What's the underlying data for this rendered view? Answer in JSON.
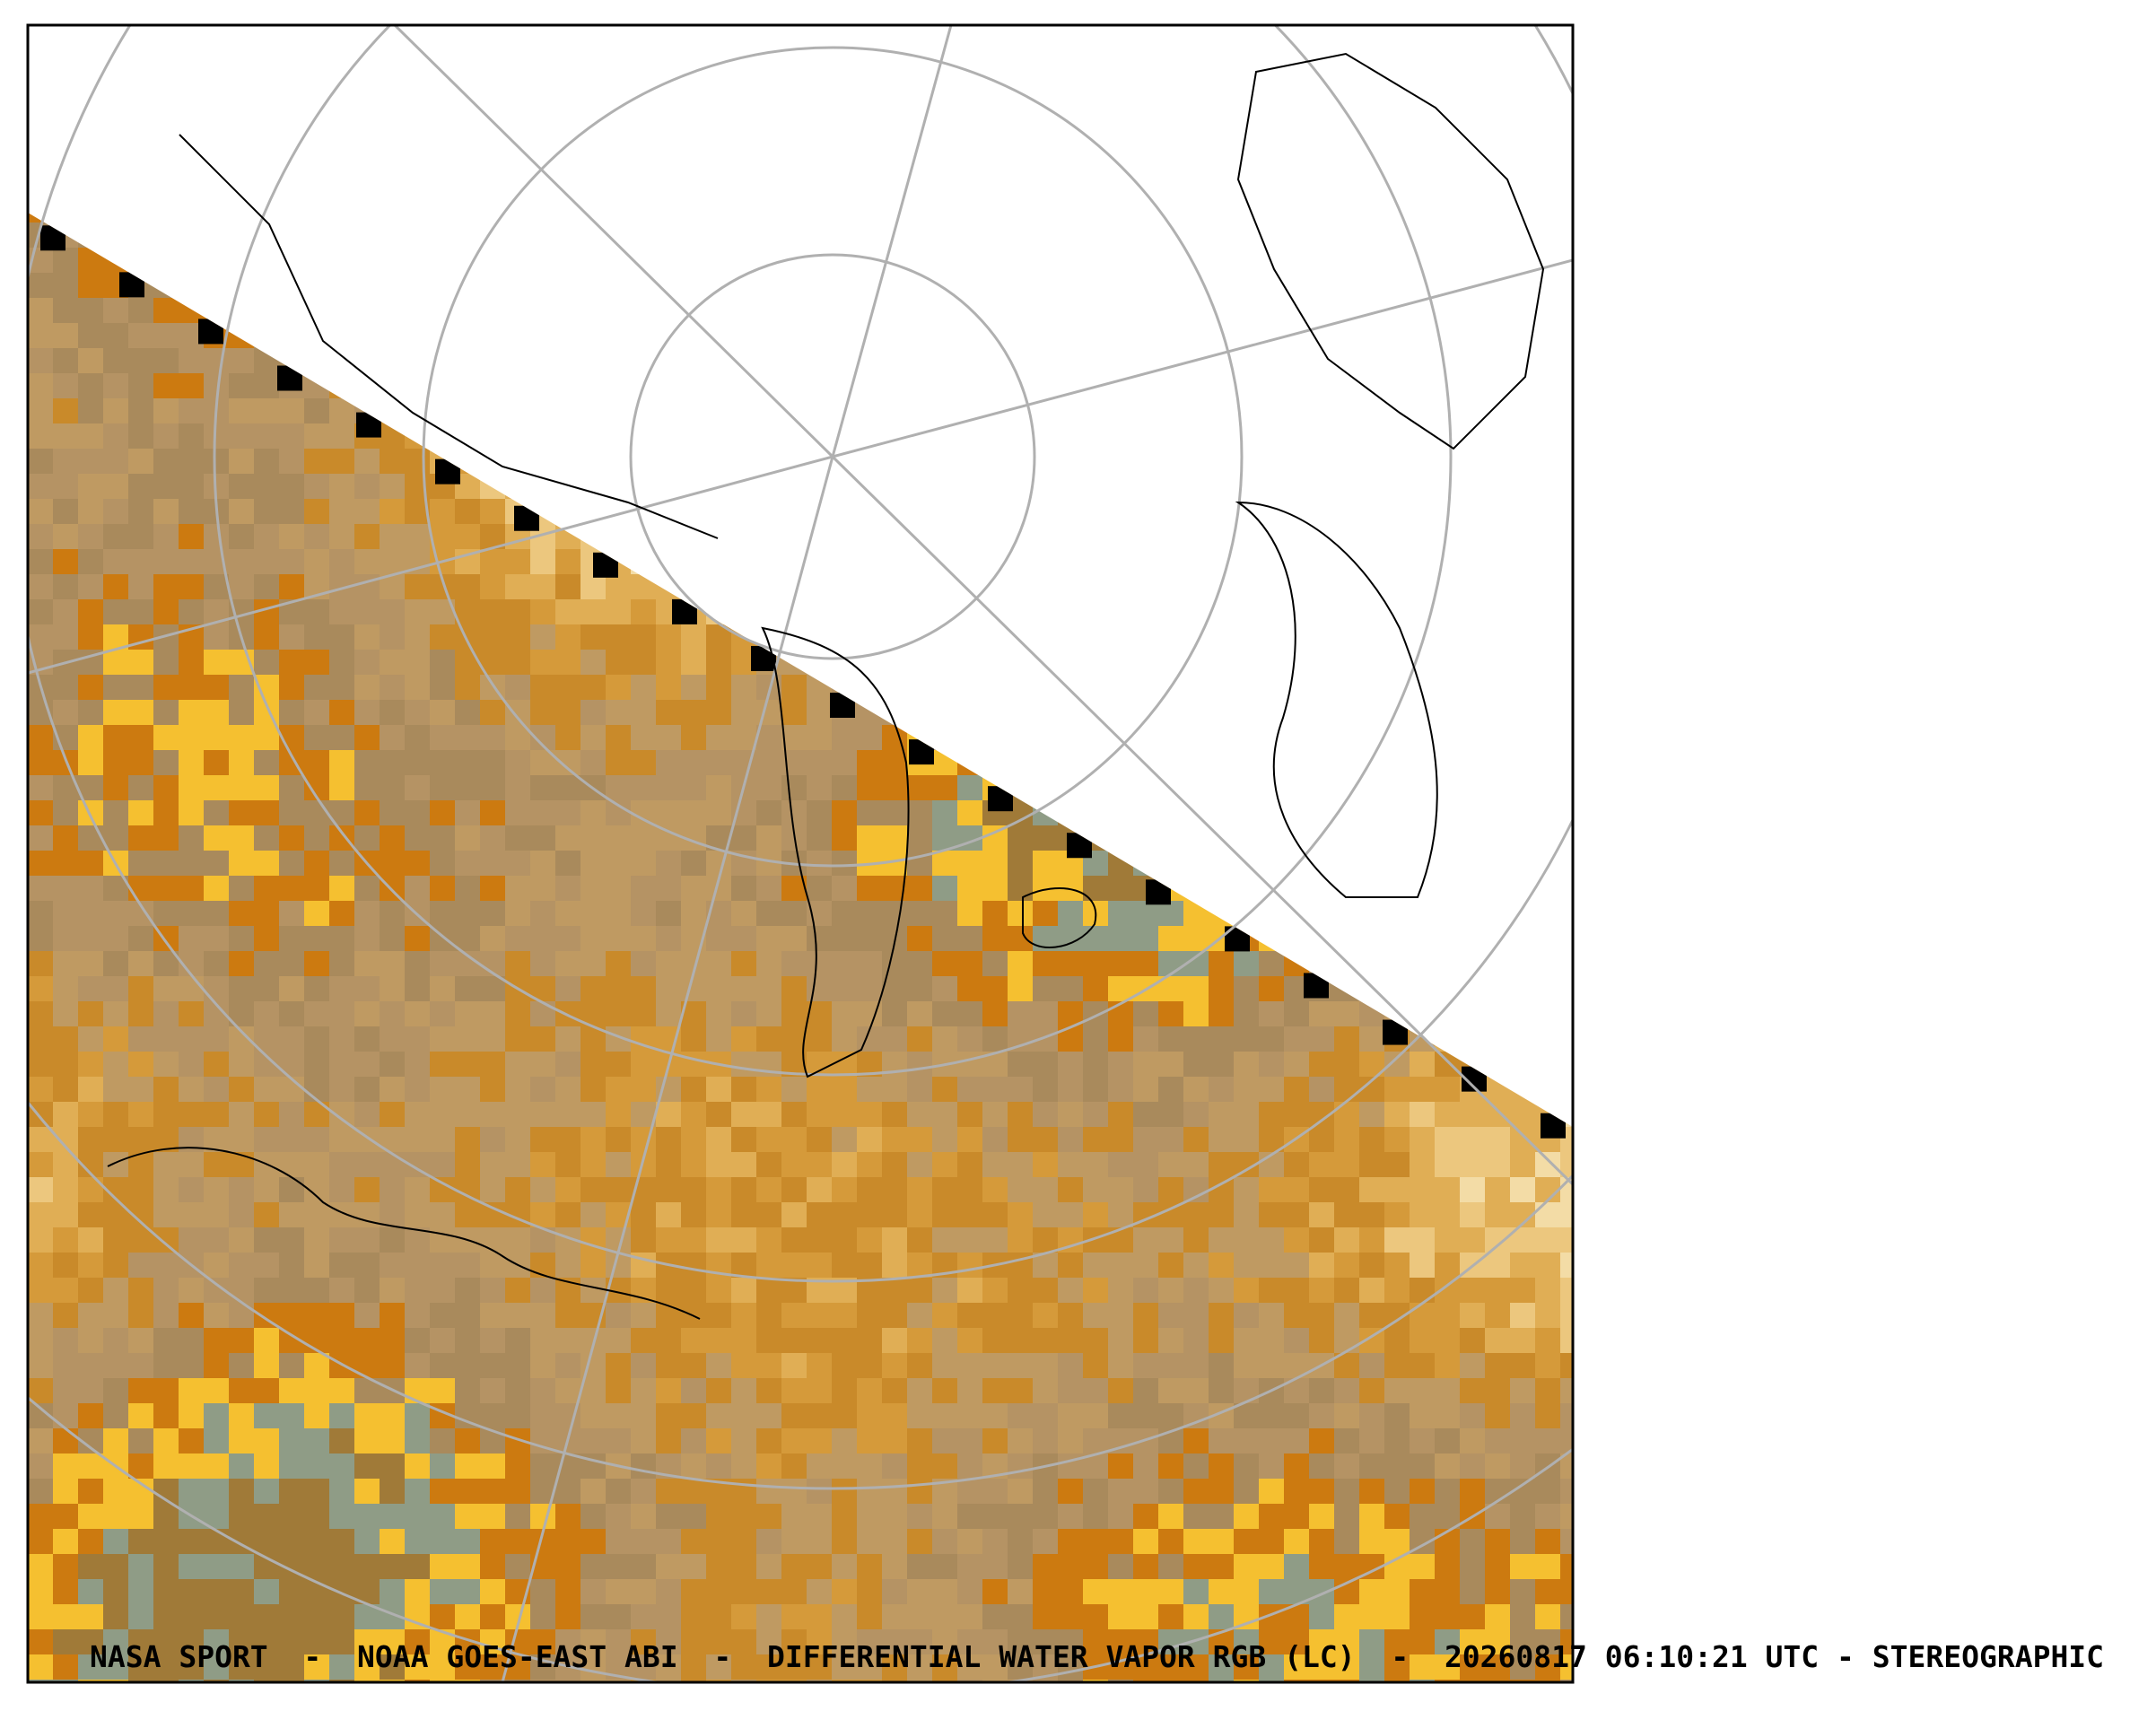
{
  "caption": "NASA SPORT  -  NOAA GOES-EAST ABI  -  DIFFERENTIAL WATER VAPOR RGB (LC)  -  20260817 06:10:21 UTC - STEREOGRAPHIC"
}
